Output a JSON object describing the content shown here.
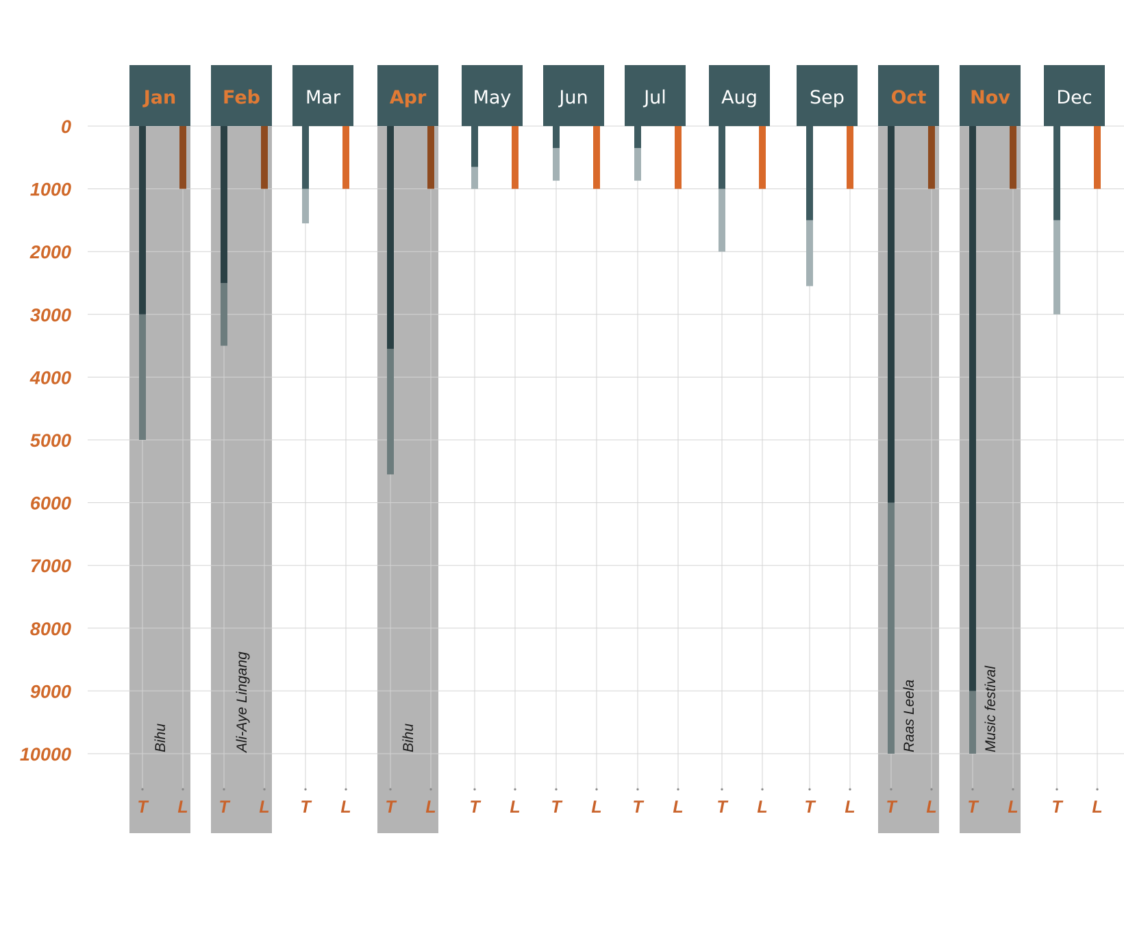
{
  "chart_data": {
    "type": "bar",
    "title": "",
    "xlabel": "",
    "ylabel": "",
    "orientation": "downward",
    "y_ticks": [
      "0",
      "1000",
      "2000",
      "3000",
      "4000",
      "5000",
      "6000",
      "7000",
      "8000",
      "9000",
      "10000"
    ],
    "ylim": [
      0,
      10000
    ],
    "categories": [
      "Jan",
      "Feb",
      "Mar",
      "Apr",
      "May",
      "Jun",
      "Jul",
      "Aug",
      "Sep",
      "Oct",
      "Nov",
      "Dec"
    ],
    "bar_labels": [
      "T",
      "L"
    ],
    "series": [
      {
        "key": "T",
        "values": [
          3000,
          2500,
          1000,
          3550,
          650,
          350,
          350,
          1000,
          1500,
          6000,
          9000,
          1500
        ]
      },
      {
        "key": "T_range_max",
        "values": [
          5000,
          3500,
          1550,
          5550,
          1000,
          870,
          870,
          2000,
          2550,
          10000,
          10000,
          3000
        ]
      },
      {
        "key": "L",
        "values": [
          1000,
          1000,
          1000,
          1000,
          1000,
          1000,
          1000,
          1000,
          1000,
          1000,
          1000,
          1000
        ]
      }
    ],
    "highlighted_months": [
      "Jan",
      "Feb",
      "Apr",
      "Oct",
      "Nov"
    ],
    "festivals": [
      {
        "month": "Jan",
        "label": "Bihu"
      },
      {
        "month": "Feb",
        "label": "Ali-Aye Lingang"
      },
      {
        "month": "Apr",
        "label": "Bihu"
      },
      {
        "month": "Oct",
        "label": "Raas Leela"
      },
      {
        "month": "Nov",
        "label": "Music festival"
      }
    ],
    "grid": true,
    "colors": {
      "header": "#3e5b60",
      "header_text": "#ffffff",
      "header_text_highlight": "#e07a35",
      "t_bar": "#3e5b60",
      "t_bar_highlight": "#2a4044",
      "t_range": "#a3b1b4",
      "t_range_highlight": "#6c7c7d",
      "l_bar": "#d9692a",
      "l_bar_highlight": "#8e4a1f",
      "highlight_band": "#b4b4b4",
      "axis_text": "#d0692a",
      "grid": "#d3d3d3"
    }
  }
}
